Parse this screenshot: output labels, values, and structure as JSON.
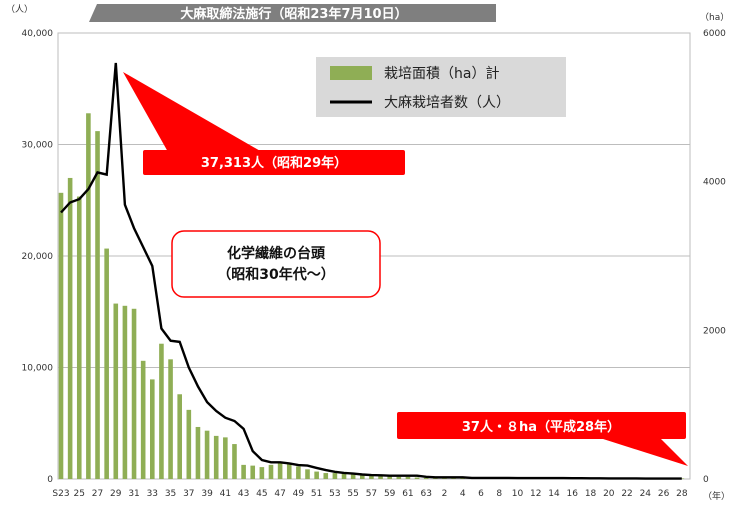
{
  "chart_data": {
    "type": "bar+line",
    "title": "大麻取締法施行（昭和23年7月10日）",
    "left_unit": "（人）",
    "right_unit": "（ha）",
    "x_unit": "（年）",
    "left_axis": {
      "min": 0,
      "max": 40000,
      "ticks": [
        "0",
        "10,000",
        "20,000",
        "30,000",
        "40,000"
      ]
    },
    "right_axis": {
      "min": 0,
      "max": 6000,
      "ticks": [
        "0",
        "2000",
        "4000",
        "6000"
      ]
    },
    "x_tick_labels": [
      "S23",
      "25",
      "27",
      "29",
      "31",
      "33",
      "35",
      "37",
      "39",
      "41",
      "43",
      "45",
      "47",
      "49",
      "51",
      "53",
      "55",
      "57",
      "59",
      "61",
      "63",
      "2",
      "4",
      "6",
      "8",
      "10",
      "12",
      "14",
      "16",
      "18",
      "20",
      "22",
      "24",
      "26",
      "28"
    ],
    "categories_count": 69,
    "area_ha": [
      3850,
      4050,
      3800,
      4920,
      4680,
      3100,
      2360,
      2330,
      2290,
      1590,
      1340,
      1820,
      1610,
      1140,
      930,
      700,
      650,
      580,
      560,
      470,
      190,
      180,
      160,
      190,
      210,
      220,
      170,
      130,
      100,
      80,
      80,
      80,
      70,
      60,
      60,
      50,
      40,
      30,
      30,
      20,
      15,
      12,
      10,
      10,
      10,
      10,
      10,
      10,
      10,
      10,
      9,
      9,
      9,
      9,
      9,
      9,
      9,
      9,
      9,
      9,
      9,
      9,
      9,
      9,
      9,
      9,
      9,
      8,
      8
    ],
    "growers": [
      23900,
      24800,
      25100,
      26000,
      27500,
      27300,
      37313,
      24600,
      22500,
      20800,
      19100,
      13500,
      12400,
      12300,
      10000,
      8300,
      6900,
      6100,
      5500,
      5200,
      4500,
      2500,
      1700,
      1500,
      1500,
      1400,
      1250,
      1200,
      1000,
      800,
      650,
      550,
      480,
      400,
      350,
      330,
      300,
      300,
      300,
      300,
      200,
      150,
      150,
      150,
      150,
      100,
      100,
      100,
      100,
      100,
      80,
      80,
      80,
      80,
      80,
      80,
      70,
      70,
      60,
      60,
      50,
      50,
      50,
      50,
      40,
      40,
      40,
      40,
      37
    ],
    "legend": {
      "area_label": "栽培面積（ha）計",
      "growers_label": "大麻栽培者数（人）"
    },
    "colors": {
      "bar": "#8fae55",
      "line": "#000000",
      "callout": "#ff0000",
      "banner": "#7f7f7f"
    },
    "annotations": {
      "peak": "37,313人（昭和29年）",
      "fiber_line1": "化学繊維の台頭",
      "fiber_line2": "（昭和30年代〜）",
      "latest": "37人・８ha（平成28年）"
    }
  }
}
